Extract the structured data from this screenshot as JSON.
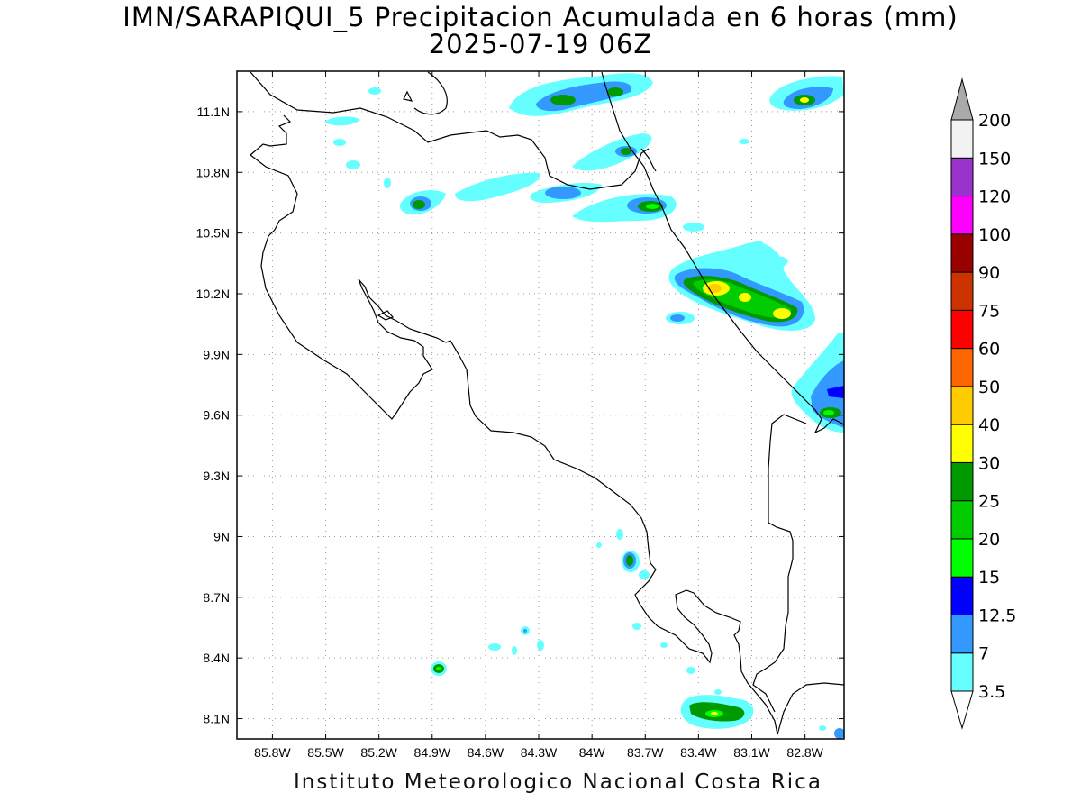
{
  "title": {
    "line1": "IMN/SARAPIQUI_5 Precipitacion Acumulada en 6 horas (mm)",
    "line2": "2025-07-19 06Z"
  },
  "footer": "Instituto Meteorologico Nacional Costa Rica",
  "map": {
    "lon_range": [
      -86.0,
      -82.58
    ],
    "lat_range": [
      8.0,
      11.3
    ],
    "x_ticks": [
      {
        "lon": -85.8,
        "label": "85.8W"
      },
      {
        "lon": -85.5,
        "label": "85.5W"
      },
      {
        "lon": -85.2,
        "label": "85.2W"
      },
      {
        "lon": -84.9,
        "label": "84.9W"
      },
      {
        "lon": -84.6,
        "label": "84.6W"
      },
      {
        "lon": -84.3,
        "label": "84.3W"
      },
      {
        "lon": -84.0,
        "label": "84W"
      },
      {
        "lon": -83.7,
        "label": "83.7W"
      },
      {
        "lon": -83.4,
        "label": "83.4W"
      },
      {
        "lon": -83.1,
        "label": "83.1W"
      },
      {
        "lon": -82.8,
        "label": "82.8W"
      }
    ],
    "y_ticks": [
      {
        "lat": 11.1,
        "label": "11.1N"
      },
      {
        "lat": 10.8,
        "label": "10.8N"
      },
      {
        "lat": 10.5,
        "label": "10.5N"
      },
      {
        "lat": 10.2,
        "label": "10.2N"
      },
      {
        "lat": 9.9,
        "label": "9.9N"
      },
      {
        "lat": 9.6,
        "label": "9.6N"
      },
      {
        "lat": 9.3,
        "label": "9.3N"
      },
      {
        "lat": 9.0,
        "label": "9N"
      },
      {
        "lat": 8.7,
        "label": "8.7N"
      },
      {
        "lat": 8.4,
        "label": "8.4N"
      },
      {
        "lat": 8.1,
        "label": "8.1N"
      }
    ],
    "grid": true
  },
  "colorbar": {
    "levels": [
      {
        "label": "3.5",
        "color": "#66ffff"
      },
      {
        "label": "7",
        "color": "#3399ff"
      },
      {
        "label": "12.5",
        "color": "#0000ff"
      },
      {
        "label": "15",
        "color": "#00ff00"
      },
      {
        "label": "20",
        "color": "#00cc00"
      },
      {
        "label": "25",
        "color": "#009900"
      },
      {
        "label": "30",
        "color": "#ffff00"
      },
      {
        "label": "40",
        "color": "#ffcc00"
      },
      {
        "label": "50",
        "color": "#ff6600"
      },
      {
        "label": "60",
        "color": "#ff0000"
      },
      {
        "label": "75",
        "color": "#cc3300"
      },
      {
        "label": "90",
        "color": "#990000"
      },
      {
        "label": "100",
        "color": "#ff00ff"
      },
      {
        "label": "120",
        "color": "#9933cc"
      },
      {
        "label": "150",
        "color": "#f2f2f2"
      },
      {
        "label": "200",
        "color": "#aaaaaa"
      }
    ]
  }
}
